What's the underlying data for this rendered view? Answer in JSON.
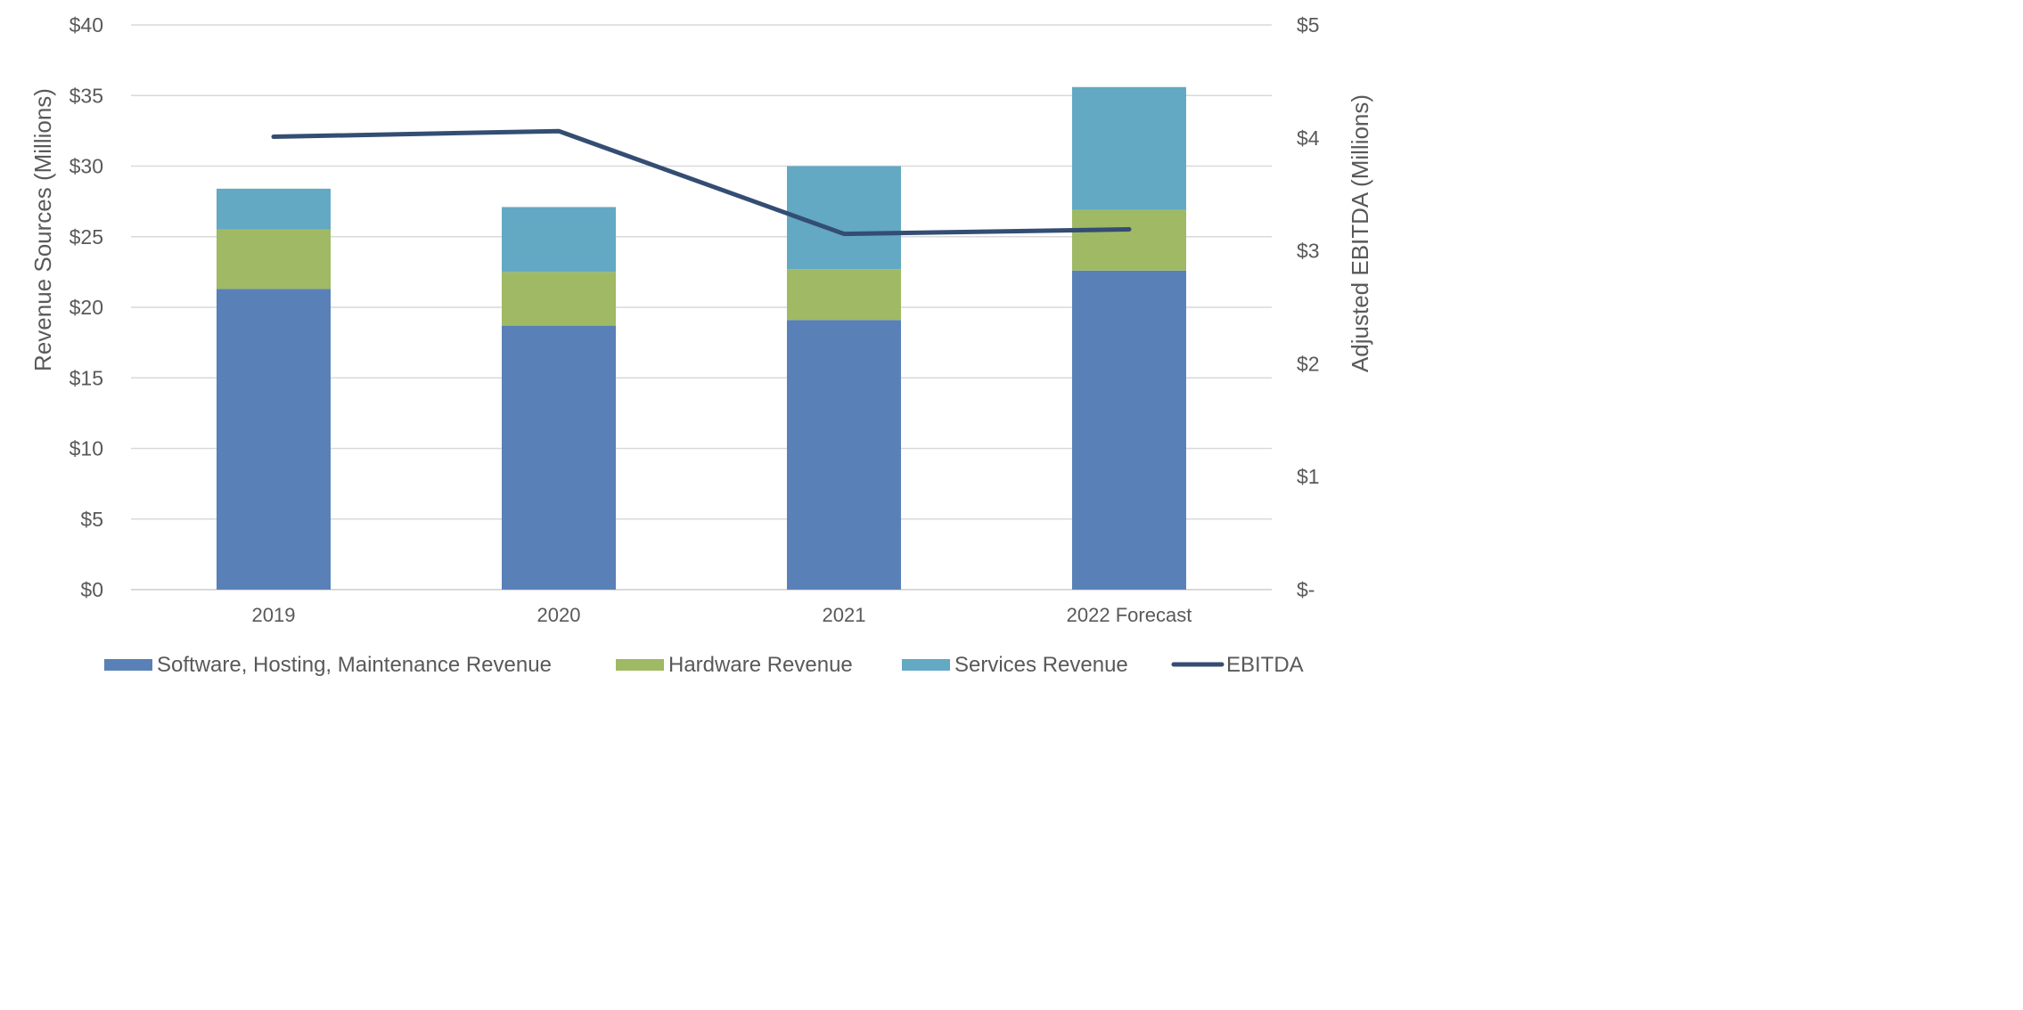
{
  "chart_data": {
    "type": "bar",
    "stacked": true,
    "categories": [
      "2019",
      "2020",
      "2021",
      "2022 Forecast"
    ],
    "series": [
      {
        "name": "Software, Hosting, Maintenance Revenue",
        "kind": "bar",
        "axis": "left",
        "color": "#5a80b8",
        "values": [
          21.3,
          18.7,
          19.1,
          22.6
        ]
      },
      {
        "name": "Hardware Revenue",
        "kind": "bar",
        "axis": "left",
        "color": "#a0b964",
        "values": [
          4.2,
          3.8,
          3.6,
          4.3
        ]
      },
      {
        "name": "Services Revenue",
        "kind": "bar",
        "axis": "left",
        "color": "#63a9c3",
        "values": [
          2.9,
          4.6,
          7.3,
          8.7
        ]
      },
      {
        "name": "EBITDA",
        "kind": "line",
        "axis": "right",
        "color": "#344d73",
        "values": [
          4.01,
          4.06,
          3.15,
          3.19
        ]
      }
    ],
    "ylabel": "Revenue Sources (Millions)",
    "y2label": "Adjusted EBITDA (Millions)",
    "ylim": [
      0,
      40
    ],
    "y2lim": [
      0,
      5
    ],
    "yticks": [
      "$0",
      "$5",
      "$10",
      "$15",
      "$20",
      "$25",
      "$30",
      "$35",
      "$40"
    ],
    "y2ticks": [
      "$-",
      "$1",
      "$2",
      "$3",
      "$4",
      "$5"
    ],
    "grid": true,
    "legend_position": "bottom",
    "colors": {
      "grid": "#d9d9d9",
      "text": "#595959"
    }
  }
}
